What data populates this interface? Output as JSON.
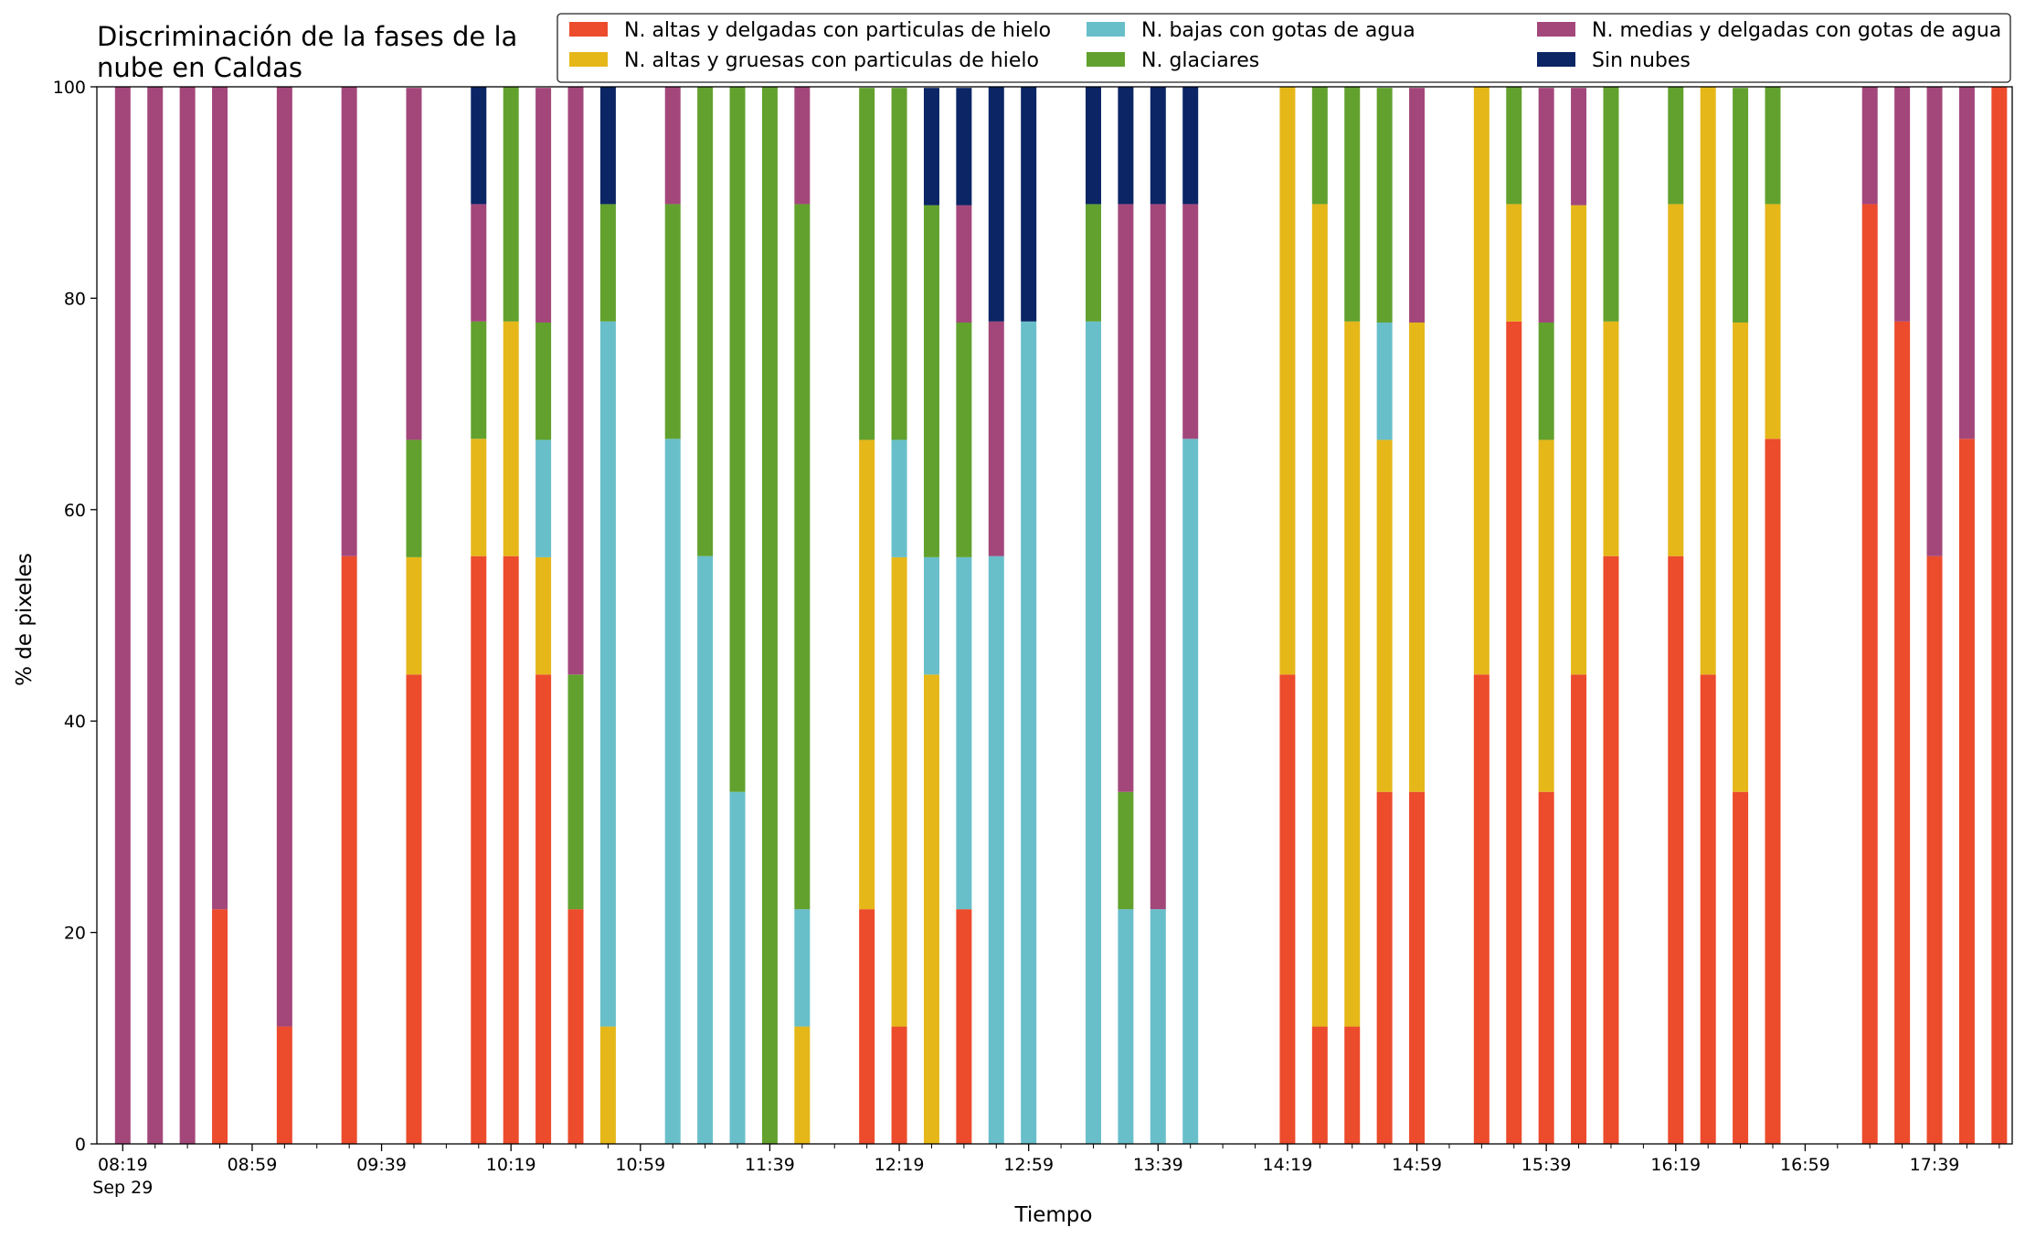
{
  "chart_data": {
    "type": "bar",
    "stacked": true,
    "title": "Discriminación de la fases de la nube en Caldas",
    "title_lines": [
      "Discriminación de la fases de la",
      "nube en Caldas"
    ],
    "xlabel": "Tiempo",
    "ylabel": "% de pixeles",
    "ylim": [
      0,
      100
    ],
    "xlim_minutes_since_08_19": [
      -8,
      584
    ],
    "x_tick_labels": [
      "08:19",
      "08:59",
      "09:39",
      "10:19",
      "10:59",
      "11:39",
      "12:19",
      "12:59",
      "13:39",
      "14:19",
      "14:59",
      "15:39",
      "16:19",
      "16:59",
      "17:39"
    ],
    "x_tick_date_label": "Sep 29",
    "y_ticks": [
      0,
      20,
      40,
      60,
      80,
      100
    ],
    "grid": false,
    "legend_position": "top",
    "x": [
      "08:19",
      "08:29",
      "08:39",
      "08:49",
      "09:09",
      "09:29",
      "09:49",
      "10:09",
      "10:19",
      "10:29",
      "10:39",
      "10:49",
      "11:09",
      "11:19",
      "11:29",
      "11:39",
      "11:49",
      "12:09",
      "12:19",
      "12:29",
      "12:39",
      "12:49",
      "12:59",
      "13:19",
      "13:29",
      "13:39",
      "13:49",
      "13:59",
      "14:19",
      "14:29",
      "14:39",
      "14:49",
      "14:59",
      "15:19",
      "15:29",
      "15:39",
      "15:49",
      "15:59",
      "16:19",
      "16:29",
      "16:39",
      "16:49",
      "17:19",
      "17:29",
      "17:39",
      "17:49",
      "17:59"
    ],
    "series": [
      {
        "name": "N. altas y delgadas con particulas de hielo",
        "color": "#ec4b2c",
        "values": [
          0,
          0,
          0,
          22.2,
          11.1,
          55.6,
          44.4,
          55.6,
          55.6,
          44.4,
          22.2,
          0,
          0,
          0,
          0,
          0,
          0,
          22.2,
          11.1,
          0,
          22.2,
          0,
          0,
          0,
          0,
          0,
          0,
          0,
          44.4,
          11.1,
          11.1,
          33.3,
          33.3,
          44.4,
          77.8,
          33.3,
          44.4,
          55.6,
          55.6,
          44.4,
          33.3,
          66.7,
          88.9,
          77.8,
          55.6,
          66.7,
          100
        ]
      },
      {
        "name": "N. altas y gruesas con particulas de hielo",
        "color": "#e5b719",
        "values": [
          0,
          0,
          0,
          0,
          0,
          0,
          11.1,
          11.1,
          22.2,
          11.1,
          0,
          11.1,
          0,
          0,
          0,
          0,
          11.1,
          44.4,
          44.4,
          44.4,
          0,
          0,
          0,
          0,
          0,
          0,
          0,
          0,
          55.6,
          77.8,
          66.7,
          33.3,
          44.4,
          55.6,
          11.1,
          33.3,
          44.4,
          22.2,
          33.3,
          55.6,
          44.4,
          22.2,
          0,
          0,
          0,
          0,
          0
        ]
      },
      {
        "name": "N. bajas con gotas de agua",
        "color": "#68bfca",
        "values": [
          0,
          0,
          0,
          0,
          0,
          0,
          0,
          0,
          0,
          11.1,
          0,
          66.7,
          66.7,
          55.6,
          33.3,
          0,
          11.1,
          0,
          11.1,
          11.1,
          33.3,
          55.6,
          77.8,
          77.8,
          22.2,
          22.2,
          66.7,
          0,
          0,
          0,
          0,
          11.1,
          0,
          0,
          0,
          0,
          0,
          0,
          0,
          0,
          0,
          0,
          0,
          0,
          0,
          0,
          0
        ]
      },
      {
        "name": "N. glaciares",
        "color": "#62a12e",
        "values": [
          0,
          0,
          0,
          0,
          0,
          0,
          11.1,
          11.1,
          22.2,
          11.1,
          22.2,
          11.1,
          22.2,
          44.4,
          66.7,
          100,
          66.7,
          33.3,
          33.3,
          33.3,
          22.2,
          0,
          0,
          11.1,
          11.1,
          0,
          0,
          0,
          0,
          11.1,
          22.2,
          22.2,
          0,
          0,
          11.1,
          11.1,
          0,
          22.2,
          11.1,
          0,
          22.2,
          11.1,
          0,
          0,
          0,
          0,
          0
        ]
      },
      {
        "name": "N. medias y delgadas con gotas de agua",
        "color": "#a3477b",
        "values": [
          100,
          100,
          100,
          77.8,
          88.9,
          44.4,
          33.3,
          11.1,
          0,
          22.2,
          55.6,
          0,
          11.1,
          0,
          0,
          0,
          11.1,
          0,
          0,
          0,
          11.1,
          22.2,
          0,
          0,
          55.6,
          66.7,
          22.2,
          0,
          0,
          0,
          0,
          0,
          22.2,
          0,
          0,
          22.2,
          11.1,
          0,
          0,
          0,
          0,
          0,
          11.1,
          22.2,
          44.4,
          33.3,
          0
        ]
      },
      {
        "name": "Sin nubes",
        "color": "#0b2565",
        "values": [
          0,
          0,
          0,
          0,
          0,
          0,
          0,
          11.1,
          0,
          0,
          0,
          11.1,
          0,
          0,
          0,
          0,
          0,
          0,
          0,
          11.1,
          11.1,
          22.2,
          22.2,
          11.1,
          11.1,
          11.1,
          11.1,
          0,
          0,
          0,
          0,
          0,
          0,
          0,
          0,
          0,
          0,
          0,
          0,
          0,
          0,
          0,
          0,
          0,
          0,
          0,
          0
        ]
      }
    ]
  }
}
